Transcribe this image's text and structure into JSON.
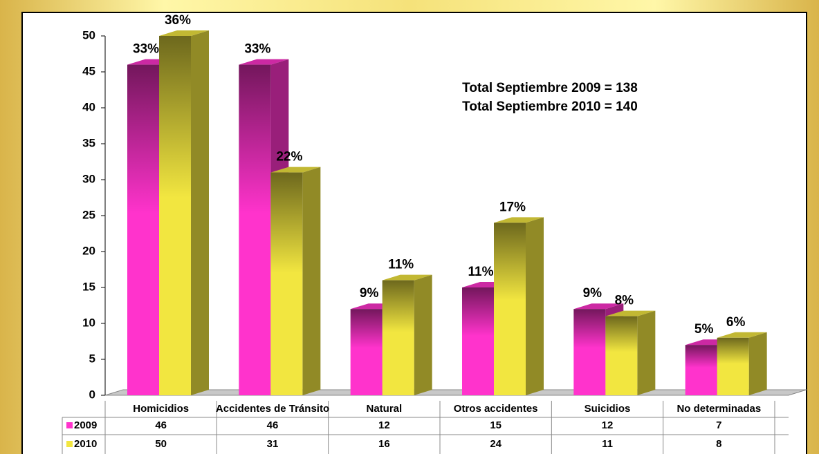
{
  "chart_data": {
    "type": "bar3d",
    "annotations": [
      "Total Septiembre  2009 = 138",
      "Total Septiembre 2010 = 140"
    ],
    "categories": [
      "Homicidios",
      "Accidentes de Tránsito",
      "Natural",
      "Otros accidentes",
      "Suicidios",
      "No determinadas"
    ],
    "series": [
      {
        "name": "2009",
        "color": "#ff33cc",
        "values": [
          46,
          46,
          12,
          15,
          12,
          7
        ],
        "percent_labels": [
          "33%",
          "33%",
          "9%",
          "11%",
          "9%",
          "5%"
        ]
      },
      {
        "name": "2010",
        "color": "#f2e640",
        "values": [
          50,
          31,
          16,
          24,
          11,
          8
        ],
        "percent_labels": [
          "36%",
          "22%",
          "11%",
          "17%",
          "8%",
          "6%"
        ]
      }
    ],
    "ylim": [
      0,
      50
    ],
    "yticks": [
      0,
      5,
      10,
      15,
      20,
      25,
      30,
      35,
      40,
      45,
      50
    ]
  }
}
